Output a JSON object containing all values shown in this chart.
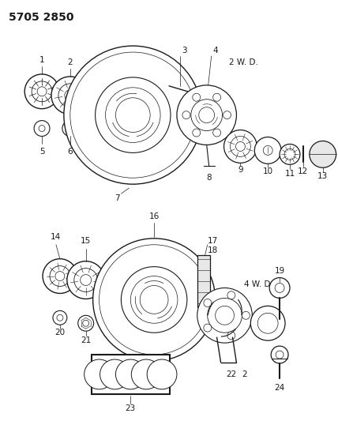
{
  "title": "5705 2850",
  "label_2wd": "2 W. D.",
  "label_4wd": "4 W. D.",
  "background_color": "#ffffff",
  "line_color": "#1a1a1a",
  "figsize": [
    4.28,
    5.33
  ],
  "dpi": 100,
  "title_fontsize": 10,
  "label_fontsize": 7.5,
  "note_fontsize": 7.5
}
